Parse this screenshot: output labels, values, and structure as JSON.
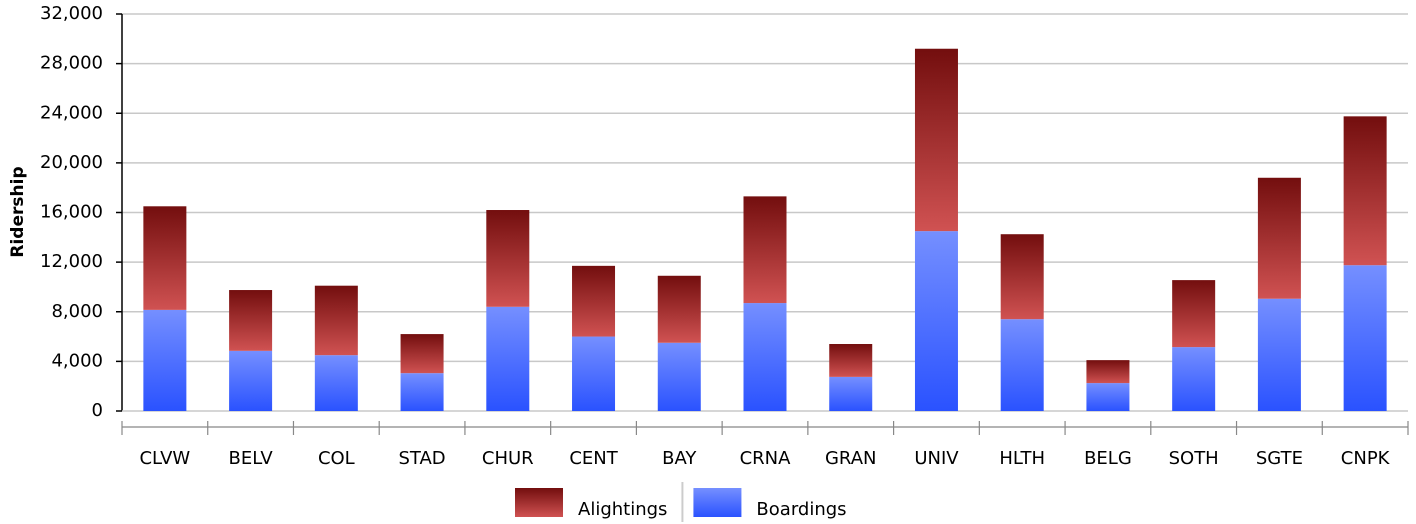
{
  "chart_data": {
    "type": "stacked-bar",
    "y_label": "Ridership",
    "categories": [
      "CLVW",
      "BELV",
      "COL",
      "STAD",
      "CHUR",
      "CENT",
      "BAY",
      "CRNA",
      "GRAN",
      "UNIV",
      "HLTH",
      "BELG",
      "SOTH",
      "SGTE",
      "CNPK"
    ],
    "series": [
      {
        "name": "Alightings",
        "color": "#c01818",
        "values": [
          8350,
          4900,
          5600,
          3150,
          7800,
          5700,
          5400,
          8600,
          2650,
          14700,
          6850,
          1850,
          5400,
          9750,
          12000
        ]
      },
      {
        "name": "Boardings",
        "color": "#2a52ff",
        "values": [
          8150,
          4850,
          4500,
          3050,
          8400,
          6000,
          5500,
          8700,
          2750,
          14500,
          7400,
          2250,
          5150,
          9050,
          11750
        ]
      }
    ],
    "ylim": [
      0,
      32000
    ],
    "yticks": [
      0,
      {
        "value": 4000,
        "label": "4,000"
      },
      {
        "value": 8000,
        "label": "8,000"
      },
      {
        "value": 12000,
        "label": "12,000"
      },
      {
        "value": 16000,
        "label": "16,000"
      },
      {
        "value": 20000,
        "label": "20,000"
      },
      {
        "value": 24000,
        "label": "24,000"
      },
      {
        "value": 28000,
        "label": "28,000"
      },
      {
        "value": 32000,
        "label": "32,000"
      }
    ],
    "grid": true,
    "legend": "bottom"
  }
}
